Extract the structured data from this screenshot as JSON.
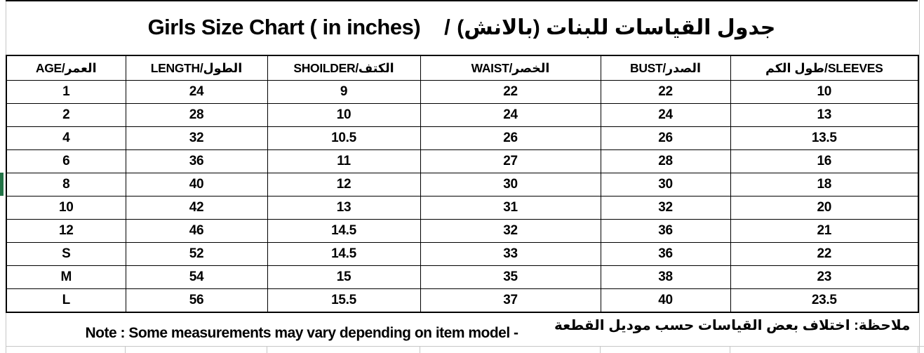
{
  "title": {
    "en": "Girls Size Chart ( in inches)",
    "separator": "/",
    "ar": "جدول القياسات للبنات (بالانش)"
  },
  "size_chart": {
    "columns": [
      "AGE/العمر",
      "LENGTH/الطول",
      "SHOILDER/الكتف",
      "WAIST/الخصر",
      "BUST/الصدر",
      "طول الكم/SLEEVES"
    ],
    "rows": [
      [
        "1",
        "24",
        "9",
        "22",
        "22",
        "10"
      ],
      [
        "2",
        "28",
        "10",
        "24",
        "24",
        "13"
      ],
      [
        "4",
        "32",
        "10.5",
        "26",
        "26",
        "13.5"
      ],
      [
        "6",
        "36",
        "11",
        "27",
        "28",
        "16"
      ],
      [
        "8",
        "40",
        "12",
        "30",
        "30",
        "18"
      ],
      [
        "10",
        "42",
        "13",
        "31",
        "32",
        "20"
      ],
      [
        "12",
        "46",
        "14.5",
        "32",
        "36",
        "21"
      ],
      [
        "S",
        "52",
        "14.5",
        "33",
        "36",
        "22"
      ],
      [
        "M",
        "54",
        "15",
        "35",
        "38",
        "23"
      ],
      [
        "L",
        "56",
        "15.5",
        "37",
        "40",
        "23.5"
      ]
    ],
    "selected_row_label": "8"
  },
  "note": {
    "en": "Note : Some measurements may vary depending on item model -",
    "ar": "ملاحظة: اختلاف بعض القياسات حسب موديل القطعة"
  },
  "colors": {
    "selection_green": "#217346",
    "gridline_gray": "#c6c6c6",
    "table_border": "#000000",
    "text": "#000000",
    "background": "#ffffff"
  }
}
